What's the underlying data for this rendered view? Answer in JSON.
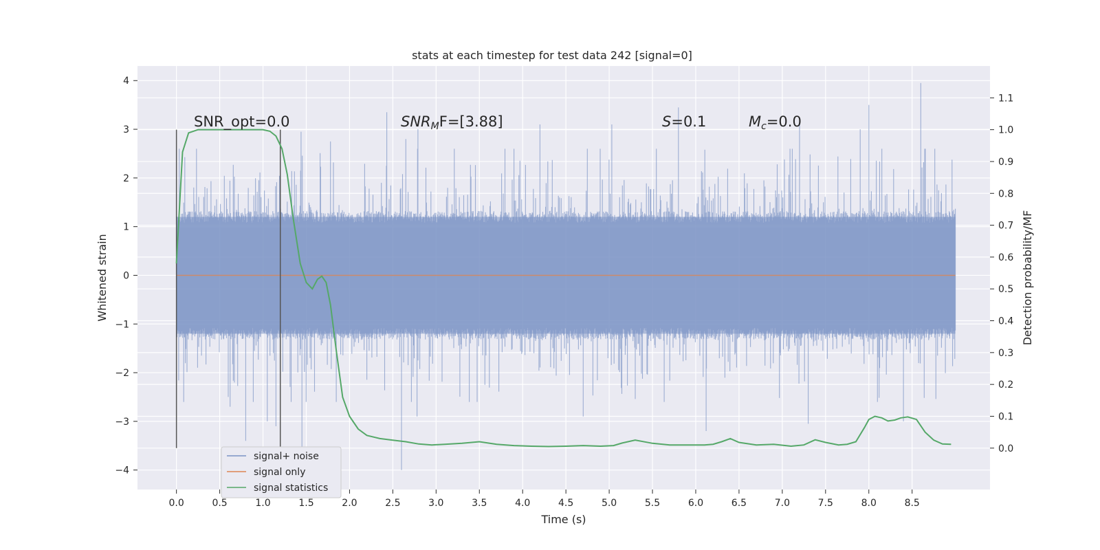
{
  "chart_data": {
    "type": "line",
    "title": "stats at each timestep for test data 242 [signal=0]",
    "xlabel": "Time (s)",
    "ylabel": "Whitened strain",
    "ylabel_right": "Detection probability/MF",
    "xlim": [
      -0.45,
      9.4
    ],
    "ylim": [
      -4.4,
      4.3
    ],
    "ylim_right": [
      -0.13,
      1.2
    ],
    "x_ticks": [
      0.0,
      0.5,
      1.0,
      1.5,
      2.0,
      2.5,
      3.0,
      3.5,
      4.0,
      4.5,
      5.0,
      5.5,
      6.0,
      6.5,
      7.0,
      7.5,
      8.0,
      8.5
    ],
    "x_tick_labels": [
      "0.0",
      "0.5",
      "1.0",
      "1.5",
      "2.0",
      "2.5",
      "3.0",
      "3.5",
      "4.0",
      "4.5",
      "5.0",
      "5.5",
      "6.0",
      "6.5",
      "7.0",
      "7.5",
      "8.0",
      "8.5"
    ],
    "y_ticks": [
      -4,
      -3,
      -2,
      -1,
      0,
      1,
      2,
      3,
      4
    ],
    "y_tick_labels": [
      "−4",
      "−3",
      "−2",
      "−1",
      "0",
      "1",
      "2",
      "3",
      "4"
    ],
    "y_right_ticks": [
      0.0,
      0.1,
      0.2,
      0.3,
      0.4,
      0.5,
      0.6,
      0.7,
      0.8,
      0.9,
      1.0,
      1.1
    ],
    "y_right_tick_labels": [
      "0.0",
      "0.1",
      "0.2",
      "0.3",
      "0.4",
      "0.5",
      "0.6",
      "0.7",
      "0.8",
      "0.9",
      "1.0",
      "1.1"
    ],
    "grid": true,
    "legend_position": "lower-left",
    "legend": [
      "signal+ noise",
      "signal only",
      "signal statistics"
    ],
    "colors": {
      "noise": "#7b93c5",
      "signal_only": "#dd8452",
      "statistics": "#55a868",
      "background": "#eaeaf2",
      "grid": "#ffffff",
      "vline": "#555555"
    },
    "annotations": {
      "snr_opt": "SNR_opt=0.0",
      "snr_mf_prefix": "SNR",
      "snr_mf_sub": "M",
      "snr_mf_suffix": "F=[3.88]",
      "s_italic": "S",
      "s_value": "=0.1",
      "mc_italic": "M",
      "mc_sub": "c",
      "mc_value": "=0.0"
    },
    "noise_series": {
      "name": "signal+ noise",
      "x_start": 0.0,
      "x_end": 9.0,
      "band_envelope": 1.2,
      "extreme_peaks": [
        [
          0.8,
          -3.4
        ],
        [
          0.62,
          -2.7
        ],
        [
          1.05,
          -3.0
        ],
        [
          1.15,
          -3.1
        ],
        [
          1.45,
          -3.55
        ],
        [
          1.44,
          2.95
        ],
        [
          1.78,
          2.75
        ],
        [
          2.43,
          3.35
        ],
        [
          2.6,
          -4.0
        ],
        [
          2.65,
          2.8
        ],
        [
          2.79,
          3.0
        ],
        [
          2.78,
          -2.9
        ],
        [
          3.9,
          2.6
        ],
        [
          4.2,
          3.1
        ],
        [
          4.7,
          -2.9
        ],
        [
          5.03,
          3.1
        ],
        [
          5.8,
          3.45
        ],
        [
          6.12,
          -3.2
        ],
        [
          7.2,
          3.15
        ],
        [
          7.3,
          -3.05
        ],
        [
          7.9,
          3.0
        ],
        [
          8.0,
          3.5
        ],
        [
          8.1,
          -2.6
        ],
        [
          8.6,
          3.95
        ],
        [
          8.4,
          -3.0
        ]
      ]
    },
    "signal_only": {
      "name": "signal only",
      "x": [
        0.0,
        9.0
      ],
      "y": [
        0.0,
        0.0
      ]
    },
    "statistics": {
      "name": "signal statistics",
      "x": [
        0.0,
        0.07,
        0.14,
        0.25,
        0.4,
        0.6,
        0.8,
        0.9,
        1.0,
        1.08,
        1.15,
        1.22,
        1.28,
        1.35,
        1.43,
        1.5,
        1.57,
        1.63,
        1.68,
        1.73,
        1.78,
        1.85,
        1.92,
        2.0,
        2.1,
        2.2,
        2.35,
        2.5,
        2.65,
        2.8,
        2.95,
        3.1,
        3.3,
        3.5,
        3.7,
        3.9,
        4.1,
        4.3,
        4.5,
        4.7,
        4.9,
        5.05,
        5.15,
        5.3,
        5.5,
        5.7,
        5.9,
        6.1,
        6.2,
        6.3,
        6.4,
        6.5,
        6.7,
        6.9,
        7.1,
        7.25,
        7.38,
        7.5,
        7.65,
        7.75,
        7.85,
        7.95,
        8.0,
        8.07,
        8.15,
        8.22,
        8.3,
        8.37,
        8.45,
        8.55,
        8.65,
        8.75,
        8.85,
        8.95
      ],
      "y": [
        0.58,
        0.93,
        0.99,
        1.0,
        1.0,
        1.0,
        1.0,
        1.0,
        1.0,
        0.995,
        0.98,
        0.94,
        0.86,
        0.72,
        0.58,
        0.52,
        0.5,
        0.53,
        0.54,
        0.52,
        0.45,
        0.3,
        0.16,
        0.1,
        0.06,
        0.04,
        0.03,
        0.025,
        0.02,
        0.013,
        0.01,
        0.012,
        0.015,
        0.02,
        0.012,
        0.008,
        0.006,
        0.005,
        0.006,
        0.008,
        0.006,
        0.008,
        0.016,
        0.025,
        0.015,
        0.01,
        0.01,
        0.01,
        0.012,
        0.02,
        0.03,
        0.018,
        0.01,
        0.012,
        0.006,
        0.01,
        0.026,
        0.018,
        0.01,
        0.012,
        0.02,
        0.065,
        0.09,
        0.1,
        0.095,
        0.085,
        0.088,
        0.095,
        0.098,
        0.09,
        0.05,
        0.025,
        0.013,
        0.012
      ]
    },
    "vertical_lines": [
      0.0,
      1.2
    ]
  }
}
